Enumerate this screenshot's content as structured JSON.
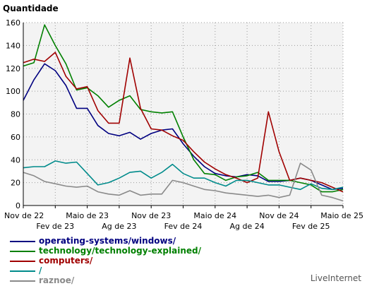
{
  "chart_data": {
    "type": "line",
    "ylabel": "Quantidade",
    "ylim": [
      0,
      160
    ],
    "yticks": [
      0,
      20,
      40,
      60,
      80,
      100,
      120,
      140,
      160
    ],
    "grid": true,
    "legend_placement": "bottom-left",
    "x": [
      "Nov 22",
      "Dez 22",
      "Jan 23",
      "Fev 23",
      "Mar 23",
      "Abr 23",
      "Mai 23",
      "Jun 23",
      "Jul 23",
      "Ago 23",
      "Set 23",
      "Out 23",
      "Nov 23",
      "Dez 23",
      "Jan 24",
      "Fev 24",
      "Mar 24",
      "Abr 24",
      "Mai 24",
      "Jun 24",
      "Jul 24",
      "Ago 24",
      "Set 24",
      "Out 24",
      "Nov 24",
      "Dez 24",
      "Jan 25",
      "Fev 25",
      "Mar 25",
      "Abr 25",
      "Mai 25"
    ],
    "xtick_labels_row1": [
      "Nov de 22",
      "Maio de 23",
      "Nov de 23",
      "Maio de 24",
      "Nov de 24",
      "Maio de 25"
    ],
    "xtick_labels_row2": [
      "Fev de 23",
      "Ag de 23",
      "Fev de 24",
      "Ag de 24",
      "Fev de 25"
    ],
    "series": [
      {
        "name": "operating-systems/windows/",
        "color": "#000080",
        "values": [
          92,
          110,
          124,
          118,
          105,
          85,
          85,
          70,
          63,
          61,
          64,
          58,
          63,
          66,
          67,
          54,
          43,
          34,
          28,
          26,
          25,
          27,
          26,
          21,
          21,
          22,
          24,
          22,
          18,
          14,
          15
        ]
      },
      {
        "name": "technology/technology-explained/",
        "color": "#008000",
        "values": [
          122,
          125,
          158,
          140,
          124,
          101,
          103,
          96,
          86,
          92,
          96,
          84,
          82,
          81,
          82,
          60,
          40,
          28,
          27,
          22,
          25,
          26,
          29,
          22,
          22,
          22,
          20,
          18,
          12,
          12,
          14
        ]
      },
      {
        "name": "computers/",
        "color": "#a00000",
        "values": [
          125,
          128,
          126,
          134,
          113,
          102,
          104,
          83,
          72,
          72,
          129,
          85,
          67,
          66,
          61,
          57,
          47,
          38,
          32,
          27,
          24,
          20,
          24,
          82,
          47,
          22,
          24,
          22,
          20,
          16,
          12
        ]
      },
      {
        "name": "/",
        "color": "#008b8b",
        "values": [
          33,
          34,
          34,
          39,
          37,
          38,
          28,
          18,
          20,
          24,
          29,
          30,
          24,
          29,
          36,
          28,
          24,
          24,
          20,
          17,
          22,
          22,
          20,
          18,
          18,
          16,
          14,
          19,
          15,
          14,
          16
        ]
      },
      {
        "name": "raznoe/",
        "color": "#8a8a8a",
        "values": [
          29,
          26,
          21,
          19,
          17,
          16,
          17,
          12,
          10,
          9,
          13,
          9,
          10,
          10,
          22,
          20,
          17,
          14,
          13,
          11,
          10,
          9,
          8,
          9,
          7,
          9,
          37,
          31,
          9,
          7,
          4
        ]
      }
    ]
  },
  "watermark": "LiveInternet"
}
